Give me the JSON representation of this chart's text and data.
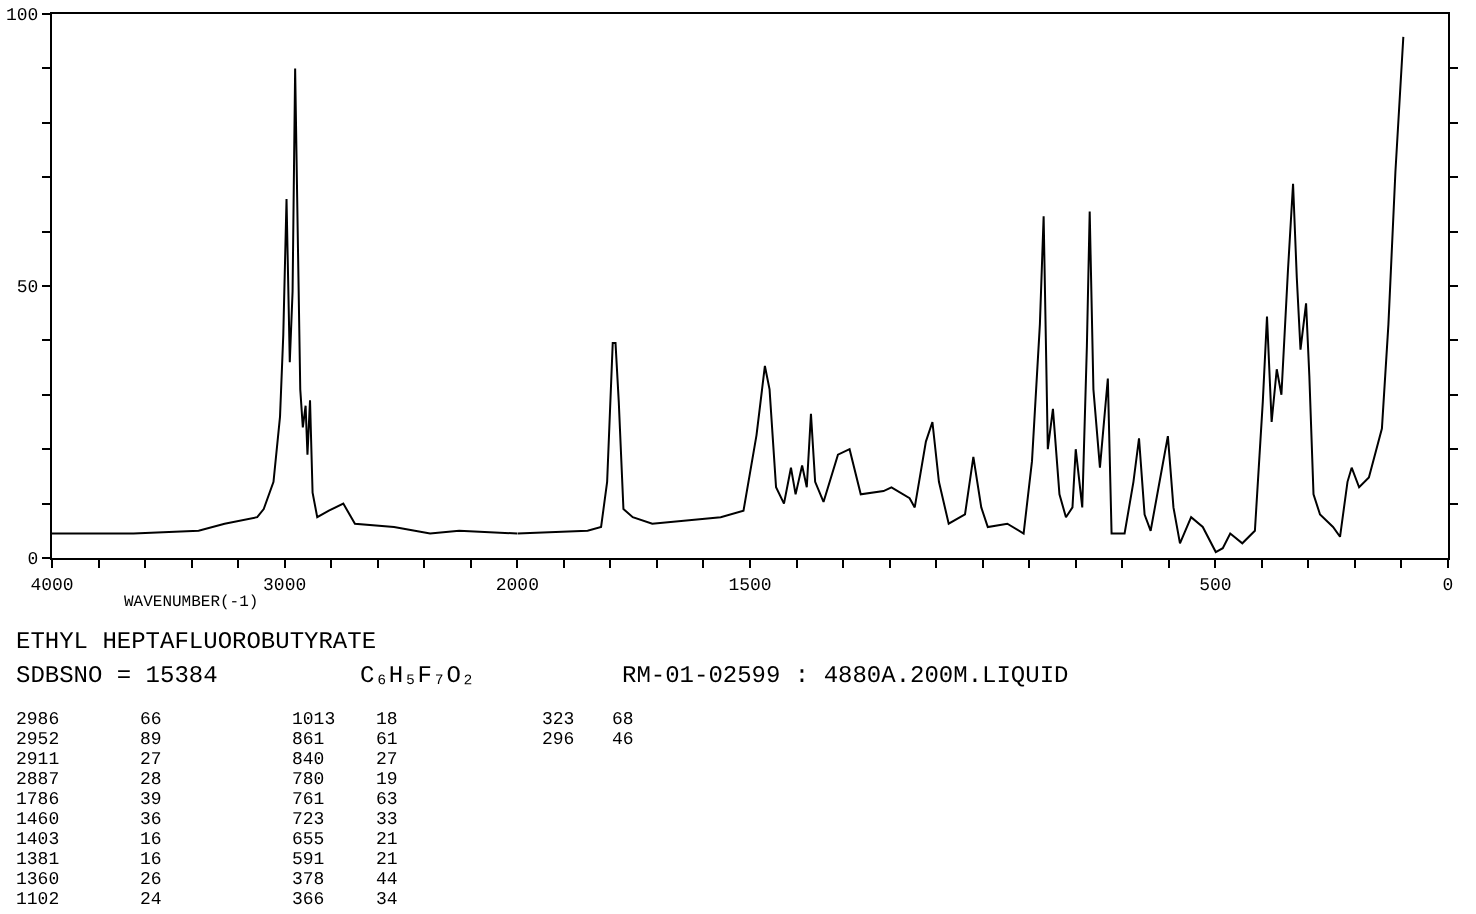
{
  "chart_data": [
    {
      "type": "line",
      "xlabel": "WAVENUMBER(-1)",
      "x": [
        4000,
        3650,
        3370,
        3258,
        3118,
        3090,
        3048,
        3020,
        3006,
        2992,
        2978,
        2966,
        2955,
        2944,
        2933,
        2922,
        2910,
        2902,
        2891,
        2880,
        2860,
        2810,
        2748,
        2698,
        2530,
        2375,
        2250,
        2000
      ],
      "series": [
        {
          "color": "#000000",
          "values": [
            4.5,
            4.5,
            5,
            6.3,
            7.5,
            9,
            14,
            26,
            41,
            66,
            36,
            49,
            90,
            60,
            31,
            24,
            28,
            19,
            29,
            12,
            7.5,
            8.7,
            10,
            6.3,
            5.7,
            4.5,
            5,
            4.5
          ]
        }
      ],
      "xlim": [
        4000,
        2000
      ],
      "xticks": [
        4000,
        {
          "value": 3800,
          "label": null
        },
        {
          "value": 3600,
          "label": null
        },
        {
          "value": 3400,
          "label": null
        },
        {
          "value": 3200,
          "label": null
        },
        3000,
        {
          "value": 2800,
          "label": null
        },
        {
          "value": 2600,
          "label": null
        },
        {
          "value": 2400,
          "label": null
        },
        {
          "value": 2200,
          "label": null
        },
        2000
      ],
      "ylim": [
        0,
        100
      ],
      "yticks": [
        0,
        {
          "value": 10,
          "label": null
        },
        {
          "value": 20,
          "label": null
        },
        {
          "value": 30,
          "label": null
        },
        {
          "value": 40,
          "label": null
        },
        50,
        {
          "value": 60,
          "label": null
        },
        {
          "value": 70,
          "label": null
        },
        {
          "value": 80,
          "label": null
        },
        {
          "value": 90,
          "label": null
        },
        100
      ],
      "marker": "none",
      "line_style": "solid",
      "annotations": [
        "ETHYL HEPTAFLUOROBUTYRATE",
        "SDBSNO = 15384",
        "C₆H₅F₇O₂",
        "RM-01-02599 : 4880A.200M.LIQUID",
        "2986",
        "66",
        "2952",
        "89",
        "2911",
        "27",
        "2887",
        "28",
        "1786",
        "39",
        "1460",
        "36",
        "1403",
        "16",
        "1381",
        "16",
        "1360",
        "26",
        "1102",
        "24",
        "1013",
        "18",
        "861",
        "61",
        "840",
        "27",
        "780",
        "19",
        "761",
        "63",
        "723",
        "33",
        "655",
        "21",
        "591",
        "21",
        "378",
        "44",
        "366",
        "34",
        "323",
        "68",
        "296",
        "46"
      ]
    },
    {
      "type": "line",
      "x": [
        2000,
        1849,
        1820,
        1807,
        1795,
        1789,
        1782,
        1772,
        1752,
        1710,
        1563,
        1514,
        1486,
        1468,
        1458,
        1444,
        1427,
        1412,
        1402,
        1388,
        1378,
        1369,
        1360,
        1342,
        1311,
        1286,
        1262,
        1213,
        1196,
        1157,
        1146,
        1122,
        1108,
        1094,
        1073,
        1038,
        1020,
        1003,
        989,
        947,
        912,
        894,
        877,
        869,
        860,
        849,
        835,
        821,
        807,
        800,
        786,
        776,
        770,
        762,
        748,
        731,
        723,
        695,
        676,
        664,
        652,
        639,
        622,
        602,
        590,
        576,
        552,
        527,
        499,
        484,
        468,
        442,
        415,
        398,
        389,
        379,
        368,
        358,
        344,
        333,
        325,
        317,
        305,
        298,
        289,
        275,
        247,
        232,
        216,
        207,
        191,
        170,
        142,
        128,
        113,
        96
      ],
      "series": [
        {
          "color": "#000000",
          "values": [
            4.5,
            5,
            5.7,
            14,
            39.5,
            39.5,
            28.7,
            9,
            7.5,
            6.3,
            7.5,
            8.7,
            22.6,
            35.3,
            31,
            13,
            10,
            16.6,
            11.7,
            17,
            13,
            26.5,
            14,
            10.3,
            19,
            20,
            11.7,
            12.3,
            13,
            11,
            9.3,
            21.4,
            25,
            14,
            6.3,
            8,
            18.6,
            9.3,
            5.7,
            6.3,
            4.5,
            17.8,
            43,
            62.8,
            20,
            27.4,
            11.7,
            7.5,
            9.3,
            20,
            9.3,
            39,
            63.7,
            31,
            16.6,
            33,
            4.5,
            4.5,
            14,
            22,
            8,
            5,
            13,
            22.4,
            9.3,
            2.7,
            7.5,
            5.7,
            1.1,
            1.8,
            4.5,
            2.7,
            5,
            28.7,
            44.4,
            25,
            34.7,
            30,
            52.8,
            68.8,
            51.6,
            38.3,
            46.8,
            33.5,
            11.7,
            8,
            5.7,
            3.9,
            14,
            16.6,
            13,
            14.8,
            23.8,
            43,
            71,
            95.8
          ]
        }
      ],
      "xlim": [
        2000,
        0
      ],
      "xticks": [
        {
          "value": 1900,
          "label": null
        },
        {
          "value": 1800,
          "label": null
        },
        {
          "value": 1700,
          "label": null
        },
        {
          "value": 1600,
          "label": null
        },
        1500,
        {
          "value": 1400,
          "label": null
        },
        {
          "value": 1300,
          "label": null
        },
        {
          "value": 1200,
          "label": null
        },
        {
          "value": 1100,
          "label": null
        },
        {
          "value": 1000,
          "label": null
        },
        {
          "value": 900,
          "label": null
        },
        {
          "value": 800,
          "label": null
        },
        {
          "value": 700,
          "label": null
        },
        {
          "value": 600,
          "label": null
        },
        500,
        {
          "value": 400,
          "label": null
        },
        {
          "value": 300,
          "label": null
        },
        {
          "value": 200,
          "label": null
        },
        {
          "value": 100,
          "label": null
        },
        0
      ],
      "ylim": [
        0,
        100
      ],
      "yticks": [
        {
          "value": 10,
          "label": null
        },
        {
          "value": 20,
          "label": null
        },
        {
          "value": 30,
          "label": null
        },
        {
          "value": 40,
          "label": null
        },
        {
          "value": 50,
          "label": null
        },
        {
          "value": 60,
          "label": null
        },
        {
          "value": 70,
          "label": null
        },
        {
          "value": 80,
          "label": null
        },
        {
          "value": 90,
          "label": null
        }
      ],
      "tick_labels": "x",
      "marker": "none",
      "line_style": "solid"
    }
  ]
}
